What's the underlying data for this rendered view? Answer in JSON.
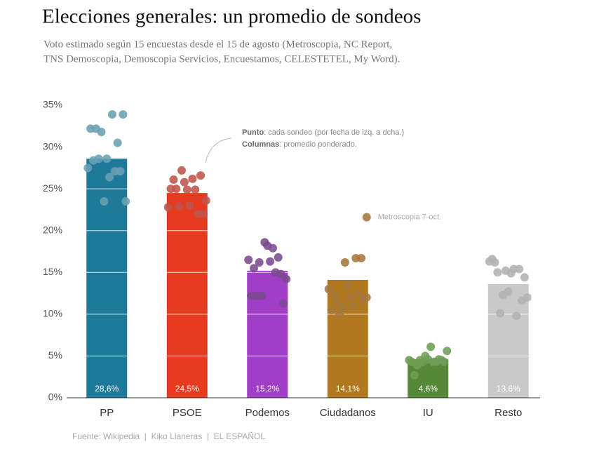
{
  "chart_data": {
    "type": "bar",
    "title": "Elecciones generales: un promedio de sondeos",
    "subtitle": [
      "Voto estimado según 15 encuestas desde el 15 de agosto (Metroscopia, NC Report,",
      "TNS Demoscopia, Demoscopia Servicios, Encuestamos, CELESTETEL, My Word)."
    ],
    "categories": [
      "PP",
      "PSOE",
      "Podemos",
      "Ciudadanos",
      "IU",
      "Resto"
    ],
    "values": [
      28.6,
      24.5,
      15.2,
      14.1,
      4.6,
      13.6
    ],
    "value_labels": [
      "28,6%",
      "24,5%",
      "15,2%",
      "14,1%",
      "4,6%",
      "13,6%"
    ],
    "colors": [
      "#1f7a99",
      "#e53b1e",
      "#a03ec8",
      "#b0781f",
      "#56883a",
      "#c9c9c9"
    ],
    "dot_colors": [
      "#6a9fb3",
      "#c0534a",
      "#7a4a8f",
      "#a6783c",
      "#6e9e55",
      "#b2b2b2"
    ],
    "polls": [
      [
        27.5,
        32.2,
        28.4,
        32.2,
        28.6,
        31.8,
        23.5,
        28.6,
        26.4,
        33.9,
        27.1,
        30.5,
        27.1,
        33.9,
        23.5
      ],
      [
        22.8,
        25.0,
        26.1,
        25.0,
        22.9,
        27.2,
        25.8,
        24.9,
        23.0,
        26.2,
        24.9,
        22.0,
        26.6,
        22.0,
        23.6
      ],
      [
        16.5,
        12.2,
        15.5,
        12.2,
        16.2,
        12.2,
        18.6,
        18.2,
        16.3,
        17.9,
        15.0,
        16.8,
        14.8,
        11.3,
        14.2
      ],
      [
        13.0,
        10.5,
        12.3,
        11.5,
        10.0,
        10.8,
        16.2,
        13.5,
        12.0,
        11.0,
        16.7,
        12.5,
        16.7,
        11.7,
        12.0
      ],
      [
        4.5,
        4.3,
        2.7,
        3.9,
        4.5,
        4.3,
        5.0,
        4.6,
        6.1,
        4.3,
        4.3,
        4.6,
        4.5,
        4.3,
        5.6
      ],
      [
        16.3,
        16.6,
        16.2,
        15.0,
        10.1,
        12.3,
        15.2,
        12.7,
        14.9,
        15.4,
        9.8,
        15.4,
        11.6,
        14.4,
        12.0
      ]
    ],
    "highlight": {
      "label": "Metroscopia 7-oct.",
      "value": 21.6,
      "category": 3
    },
    "annotation": [
      [
        "Punto",
        ": cada sondeo (por fecha de izq. a dcha.)"
      ],
      [
        "Columnas",
        ": promedio ponderado."
      ]
    ],
    "ylim": [
      0,
      35
    ],
    "yticks": [
      {
        "value": 0,
        "label": "0%"
      },
      {
        "value": 5,
        "label": "5%"
      },
      {
        "value": 10,
        "label": "10%"
      },
      {
        "value": 15,
        "label": "15%"
      },
      {
        "value": 20,
        "label": "20%"
      },
      {
        "value": 25,
        "label": "25%"
      },
      {
        "value": 30,
        "label": "30%"
      },
      {
        "value": 35,
        "label": "35%"
      }
    ],
    "grid": true,
    "source": "Fuente: Wikipedia  |  Kiko Llaneras  |  EL ESPAÑOL"
  }
}
